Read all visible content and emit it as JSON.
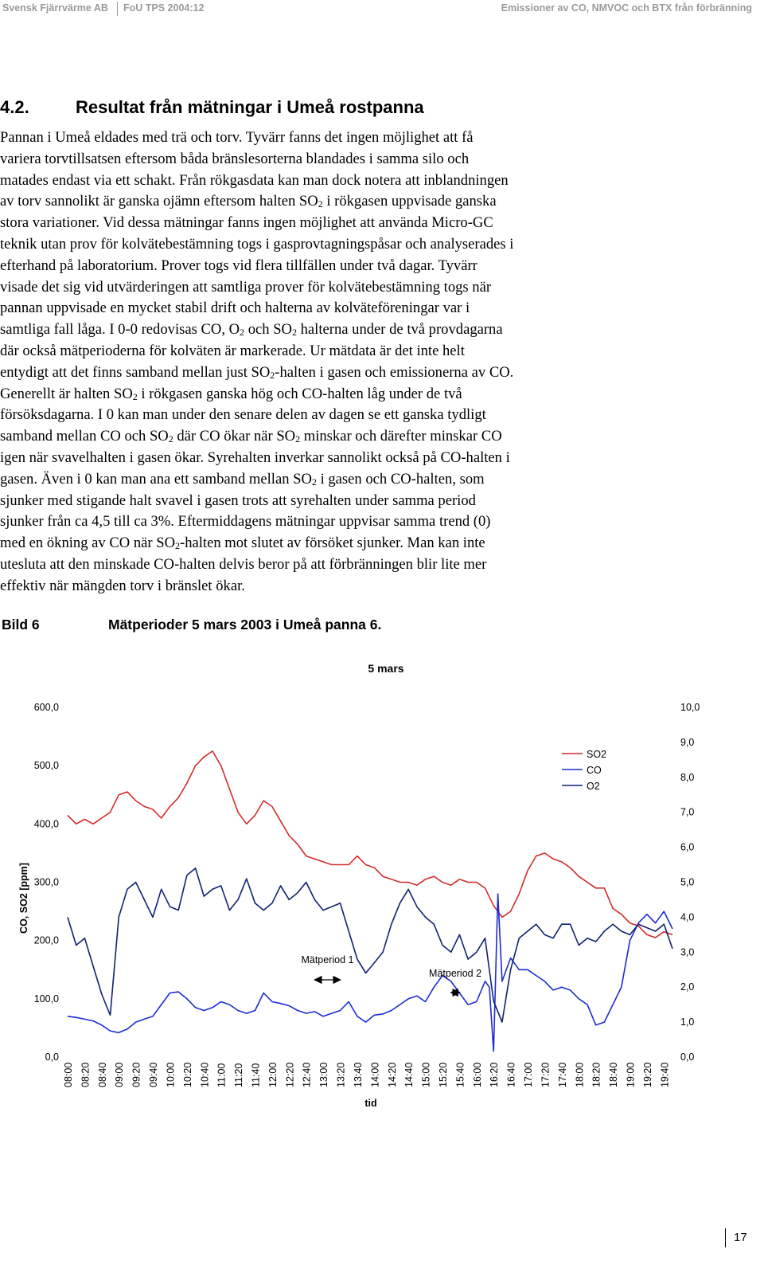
{
  "header": {
    "org": "Svensk Fjärrvärme AB",
    "report": "FoU TPS 2004:12",
    "title": "Emissioner av CO, NMVOC och BTX från förbränning"
  },
  "section": {
    "number": "4.2.",
    "title": "Resultat från mätningar i Umeå rostpanna"
  },
  "body_lines": [
    [
      "Pannan i Umeå eldades med trä och torv. Tyvärr fanns det ingen möjlighet att få"
    ],
    [
      "variera torvtillsatsen eftersom båda bränslesorterna blandades i samma silo och"
    ],
    [
      "matades endast via ett schakt. Från rökgasdata kan man dock notera att inblandningen"
    ],
    [
      "av torv sannolikt är ganska ojämn eftersom halten SO",
      "2",
      " i rökgasen uppvisade ganska"
    ],
    [
      "stora variationer. Vid dessa mätningar fanns ingen möjlighet att använda Micro-GC"
    ],
    [
      "teknik utan prov för kolvätebestämning togs i gasprovtagningspåsar och analyserades i"
    ],
    [
      "efterhand på laboratorium. Prover togs vid flera tillfällen under två dagar. Tyvärr"
    ],
    [
      "visade det sig vid utvärderingen att samtliga prover för kolvätebestämning togs när"
    ],
    [
      "pannan uppvisade en mycket stabil drift och halterna av kolväteföreningar var i"
    ],
    [
      "samtliga fall låga. I 0-0 redovisas CO, O",
      "2",
      " och SO",
      "2",
      " halterna under de två provdagarna"
    ],
    [
      "där också mätperioderna för kolväten är markerade. Ur mätdata är det inte helt"
    ],
    [
      "entydigt att det finns samband mellan just SO",
      "2",
      "-halten i gasen och emissionerna av CO."
    ],
    [
      "Generellt är halten SO",
      "2",
      " i rökgasen ganska hög och CO-halten låg under de två"
    ],
    [
      "försöksdagarna. I 0 kan man under den senare delen av dagen se ett ganska tydligt"
    ],
    [
      "samband mellan CO och SO",
      "2",
      " där CO ökar när SO",
      "2",
      " minskar och därefter minskar CO"
    ],
    [
      "igen när svavelhalten i gasen ökar. Syrehalten inverkar sannolikt också på CO-halten i"
    ],
    [
      "gasen. Även i 0 kan man ana ett samband mellan SO",
      "2",
      " i gasen och CO-halten, som"
    ],
    [
      "sjunker med stigande halt svavel i gasen trots att syrehalten under samma period"
    ],
    [
      "sjunker från ca 4,5 till ca 3%. Eftermiddagens mätningar uppvisar samma trend (0)"
    ],
    [
      "med en ökning av CO när SO",
      "2",
      "-halten mot slutet av försöket sjunker. Man kan inte"
    ],
    [
      "utesluta att den minskade CO-halten delvis beror på att förbränningen blir lite mer"
    ],
    [
      "effektiv när mängden torv i bränslet ökar."
    ]
  ],
  "figure": {
    "label": "Bild 6",
    "caption": "Mätperioder 5 mars 2003 i Umeå panna 6."
  },
  "footer": {
    "page": "17"
  },
  "chart_data": {
    "type": "line",
    "title": "5 mars",
    "xlabel": "tid",
    "ylabel": "CO, SO2 [ppm]",
    "ylabel_right": "",
    "ylim": [
      0,
      600
    ],
    "ylim_right": [
      0,
      10
    ],
    "y_ticks": [
      "0,0",
      "100,0",
      "200,0",
      "300,0",
      "400,0",
      "500,0",
      "600,0"
    ],
    "y_right_ticks": [
      "0,0",
      "1,0",
      "2,0",
      "3,0",
      "4,0",
      "5,0",
      "6,0",
      "7,0",
      "8,0",
      "9,0",
      "10,0"
    ],
    "x_ticks": [
      "08:00",
      "08:20",
      "08:40",
      "09:00",
      "09:20",
      "09:40",
      "10:00",
      "10:20",
      "10:40",
      "11:00",
      "11:20",
      "11:40",
      "12:00",
      "12:20",
      "12:40",
      "13:00",
      "13:20",
      "13:40",
      "14:00",
      "14:20",
      "14:40",
      "15:00",
      "15:20",
      "15:40",
      "16:00",
      "16:20",
      "16:40",
      "17:00",
      "17:20",
      "17:40",
      "18:00",
      "18:20",
      "18:40",
      "19:00",
      "19:20",
      "19:40"
    ],
    "grid": false,
    "legend_position": "top-right",
    "colors": {
      "SO2": "#d42a2a",
      "CO": "#1c2cd0",
      "O2": "#102270"
    },
    "series": [
      {
        "name": "SO2",
        "axis": "left",
        "x": [
          "08:00",
          "08:10",
          "08:20",
          "08:30",
          "08:40",
          "08:50",
          "09:00",
          "09:10",
          "09:20",
          "09:30",
          "09:40",
          "09:50",
          "10:00",
          "10:10",
          "10:20",
          "10:30",
          "10:40",
          "10:50",
          "11:00",
          "11:10",
          "11:20",
          "11:30",
          "11:40",
          "11:50",
          "12:00",
          "12:10",
          "12:20",
          "12:30",
          "12:40",
          "12:50",
          "13:00",
          "13:10",
          "13:20",
          "13:30",
          "13:40",
          "13:50",
          "14:00",
          "14:10",
          "14:20",
          "14:30",
          "14:40",
          "14:50",
          "15:00",
          "15:10",
          "15:20",
          "15:30",
          "15:40",
          "15:50",
          "16:00",
          "16:10",
          "16:20",
          "16:30",
          "16:40",
          "16:50",
          "17:00",
          "17:10",
          "17:20",
          "17:30",
          "17:40",
          "17:50",
          "18:00",
          "18:10",
          "18:20",
          "18:30",
          "18:40",
          "18:50",
          "19:00",
          "19:10",
          "19:20",
          "19:30",
          "19:40",
          "19:50"
        ],
        "values": [
          415,
          400,
          408,
          400,
          410,
          420,
          450,
          455,
          440,
          430,
          425,
          410,
          430,
          445,
          470,
          500,
          515,
          525,
          500,
          460,
          420,
          400,
          415,
          440,
          430,
          405,
          380,
          365,
          345,
          340,
          335,
          330,
          330,
          330,
          345,
          330,
          325,
          310,
          305,
          300,
          300,
          295,
          305,
          310,
          300,
          295,
          305,
          300,
          300,
          290,
          260,
          240,
          250,
          280,
          320,
          345,
          350,
          340,
          335,
          325,
          310,
          300,
          290,
          290,
          255,
          245,
          230,
          225,
          210,
          205,
          215,
          210
        ]
      },
      {
        "name": "CO",
        "axis": "left",
        "x": [
          "08:00",
          "08:10",
          "08:20",
          "08:30",
          "08:40",
          "08:50",
          "09:00",
          "09:10",
          "09:20",
          "09:30",
          "09:40",
          "09:50",
          "10:00",
          "10:10",
          "10:20",
          "10:30",
          "10:40",
          "10:50",
          "11:00",
          "11:10",
          "11:20",
          "11:30",
          "11:40",
          "11:50",
          "12:00",
          "12:10",
          "12:20",
          "12:30",
          "12:40",
          "12:50",
          "13:00",
          "13:10",
          "13:20",
          "13:30",
          "13:40",
          "13:50",
          "14:00",
          "14:10",
          "14:20",
          "14:30",
          "14:40",
          "14:50",
          "15:00",
          "15:10",
          "15:20",
          "15:30",
          "15:40",
          "15:50",
          "16:00",
          "16:10",
          "16:15",
          "16:20",
          "16:25",
          "16:30",
          "16:40",
          "16:50",
          "17:00",
          "17:10",
          "17:20",
          "17:30",
          "17:40",
          "17:50",
          "18:00",
          "18:10",
          "18:20",
          "18:30",
          "18:40",
          "18:50",
          "19:00",
          "19:10",
          "19:20",
          "19:30",
          "19:40",
          "19:50"
        ],
        "values": [
          70,
          68,
          65,
          62,
          55,
          45,
          42,
          48,
          60,
          65,
          70,
          90,
          110,
          112,
          100,
          85,
          80,
          85,
          95,
          90,
          80,
          75,
          80,
          110,
          95,
          92,
          88,
          80,
          75,
          78,
          70,
          75,
          80,
          95,
          70,
          60,
          72,
          74,
          80,
          90,
          100,
          105,
          95,
          120,
          140,
          130,
          110,
          90,
          95,
          130,
          120,
          10,
          280,
          130,
          170,
          150,
          150,
          140,
          130,
          115,
          120,
          115,
          100,
          90,
          55,
          60,
          90,
          120,
          200,
          230,
          245,
          230,
          250,
          220
        ]
      },
      {
        "name": "O2",
        "axis": "right",
        "x": [
          "08:00",
          "08:05",
          "08:10",
          "08:15",
          "08:20",
          "08:30",
          "08:40",
          "08:50",
          "09:00",
          "09:10",
          "09:20",
          "09:30",
          "09:40",
          "09:50",
          "10:00",
          "10:10",
          "10:20",
          "10:30",
          "10:40",
          "10:50",
          "11:00",
          "11:10",
          "11:20",
          "11:30",
          "11:40",
          "11:50",
          "12:00",
          "12:10",
          "12:20",
          "12:30",
          "12:40",
          "12:50",
          "13:00",
          "13:10",
          "13:20",
          "13:30",
          "13:40",
          "13:50",
          "14:00",
          "14:10",
          "14:20",
          "14:30",
          "14:40",
          "14:50",
          "15:00",
          "15:10",
          "15:20",
          "15:30",
          "15:40",
          "15:50",
          "16:00",
          "16:10",
          "16:20",
          "16:30",
          "16:40",
          "16:50",
          "17:00",
          "17:10",
          "17:20",
          "17:30",
          "17:40",
          "17:50",
          "18:00",
          "18:10",
          "18:20",
          "18:30",
          "18:40",
          "18:50",
          "19:00",
          "19:10",
          "19:20",
          "19:30",
          "19:40",
          "19:50"
        ],
        "values": [
          4.0,
          3.6,
          3.2,
          3.3,
          3.4,
          2.6,
          1.8,
          1.2,
          4.0,
          4.8,
          5.0,
          4.5,
          4.0,
          4.8,
          4.3,
          4.2,
          5.2,
          5.4,
          4.6,
          4.8,
          4.9,
          4.2,
          4.5,
          5.1,
          4.4,
          4.2,
          4.4,
          4.9,
          4.5,
          4.7,
          5.0,
          4.5,
          4.2,
          4.3,
          4.4,
          3.6,
          2.8,
          2.4,
          2.7,
          3.0,
          3.8,
          4.4,
          4.8,
          4.3,
          4.0,
          3.8,
          3.2,
          3.0,
          3.5,
          2.8,
          3.0,
          3.4,
          1.6,
          1.0,
          2.5,
          3.4,
          3.6,
          3.8,
          3.5,
          3.4,
          3.8,
          3.8,
          3.2,
          3.4,
          3.3,
          3.6,
          3.8,
          3.6,
          3.5,
          3.8,
          3.7,
          3.6,
          3.8,
          3.1
        ]
      }
    ],
    "annotations": [
      {
        "text": "Mätperiod 1",
        "x_from": "12:50",
        "x_to": "13:20"
      },
      {
        "text": "Mätperiod 2",
        "x_from": "15:30",
        "x_to": "15:40"
      }
    ]
  }
}
